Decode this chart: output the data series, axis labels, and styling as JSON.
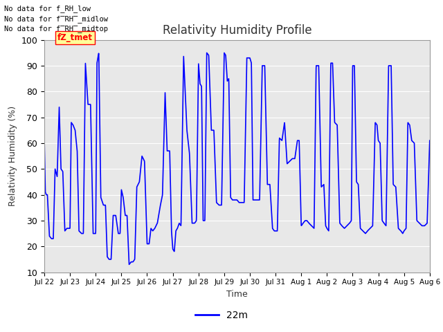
{
  "title": "Relativity Humidity Profile",
  "xlabel": "Time",
  "ylabel": "Relativity Humidity (%)",
  "ylim": [
    10,
    100
  ],
  "yticks": [
    10,
    20,
    30,
    40,
    50,
    60,
    70,
    80,
    90,
    100
  ],
  "line_color": "blue",
  "line_width": 1.2,
  "bg_color": "#e8e8e8",
  "legend_label": "22m",
  "no_data_lines": [
    "No data for f_RH_low",
    "No data for f̅RH̅_midlow",
    "No data for f̅RH̅_midtop"
  ],
  "tz_label": "fZ_tmet",
  "x_tick_labels": [
    "Jul 22",
    "Jul 23",
    "Jul 24",
    "Jul 25",
    "Jul 26",
    "Jul 27",
    "Jul 28",
    "Jul 29",
    "Jul 30",
    "Jul 31",
    "Aug 1",
    "Aug 2",
    "Aug 3",
    "Aug 4",
    "Aug 5",
    "Aug 6"
  ],
  "key_t": [
    0.0,
    0.04,
    0.08,
    0.12,
    0.2,
    0.28,
    0.35,
    0.42,
    0.5,
    0.58,
    0.65,
    0.72,
    0.8,
    0.88,
    0.95,
    1.0,
    1.05,
    1.12,
    1.2,
    1.28,
    1.35,
    1.45,
    1.52,
    1.6,
    1.7,
    1.8,
    1.9,
    2.0,
    2.05,
    2.12,
    2.2,
    2.3,
    2.38,
    2.45,
    2.52,
    2.6,
    2.68,
    2.78,
    2.88,
    2.95,
    3.0,
    3.07,
    3.15,
    3.22,
    3.3,
    3.38,
    3.45,
    3.52,
    3.6,
    3.7,
    3.8,
    3.9,
    4.0,
    4.08,
    4.15,
    4.22,
    4.3,
    4.4,
    4.5,
    4.6,
    4.7,
    4.78,
    4.88,
    4.95,
    5.0,
    5.06,
    5.12,
    5.18,
    5.25,
    5.32,
    5.42,
    5.55,
    5.65,
    5.75,
    5.85,
    5.92,
    6.0,
    6.06,
    6.12,
    6.18,
    6.25,
    6.32,
    6.4,
    6.5,
    6.6,
    6.7,
    6.8,
    6.9,
    7.0,
    7.06,
    7.12,
    7.18,
    7.25,
    7.32,
    7.4,
    7.5,
    7.58,
    7.68,
    7.78,
    7.88,
    7.95,
    8.0,
    8.06,
    8.12,
    8.2,
    8.3,
    8.38,
    8.48,
    8.58,
    8.68,
    8.78,
    8.88,
    8.95,
    9.0,
    9.07,
    9.15,
    9.25,
    9.35,
    9.45,
    9.55,
    9.65,
    9.75,
    9.85,
    9.92,
    10.0,
    10.07,
    10.15,
    10.22,
    10.3,
    10.4,
    10.5,
    10.58,
    10.68,
    10.78,
    10.88,
    10.95,
    11.0,
    11.07,
    11.15,
    11.22,
    11.3,
    11.4,
    11.5,
    11.58,
    11.68,
    11.78,
    11.88,
    11.95,
    12.0,
    12.07,
    12.15,
    12.22,
    12.3,
    12.4,
    12.5,
    12.58,
    12.68,
    12.78,
    12.88,
    12.95,
    13.0,
    13.07,
    13.15,
    13.22,
    13.3,
    13.4,
    13.5,
    13.58,
    13.68,
    13.78,
    13.88,
    13.95,
    14.0,
    14.08,
    14.15,
    14.22,
    14.3,
    14.4,
    14.5,
    14.6,
    14.7,
    14.8,
    14.9,
    15.0
  ],
  "key_v": [
    62,
    41,
    40,
    40,
    24,
    23,
    23,
    50,
    47,
    74,
    50,
    49,
    26,
    27,
    27,
    27,
    68,
    67,
    65,
    57,
    26,
    25,
    25,
    91,
    75,
    75,
    25,
    25,
    91,
    95,
    39,
    36,
    36,
    16,
    15,
    15,
    32,
    32,
    25,
    25,
    42,
    39,
    32,
    32,
    13,
    14,
    14,
    15,
    43,
    45,
    55,
    53,
    21,
    21,
    27,
    26,
    27,
    29,
    35,
    40,
    80,
    57,
    57,
    26,
    19,
    18,
    26,
    27,
    29,
    28,
    94,
    65,
    56,
    29,
    29,
    30,
    91,
    83,
    82,
    30,
    30,
    95,
    94,
    65,
    65,
    37,
    36,
    36,
    95,
    94,
    84,
    85,
    39,
    38,
    38,
    38,
    37,
    37,
    37,
    93,
    93,
    93,
    91,
    38,
    38,
    38,
    38,
    90,
    90,
    44,
    44,
    27,
    26,
    26,
    26,
    62,
    61,
    68,
    52,
    53,
    54,
    54,
    61,
    61,
    28,
    29,
    30,
    30,
    29,
    28,
    27,
    90,
    90,
    43,
    44,
    28,
    27,
    26,
    91,
    91,
    68,
    67,
    29,
    28,
    27,
    28,
    29,
    30,
    90,
    90,
    45,
    44,
    27,
    26,
    25,
    26,
    27,
    28,
    68,
    67,
    61,
    60,
    30,
    29,
    28,
    90,
    90,
    44,
    43,
    27,
    26,
    25,
    26,
    27,
    68,
    67,
    61,
    60,
    30,
    29,
    28,
    28,
    29,
    61
  ]
}
